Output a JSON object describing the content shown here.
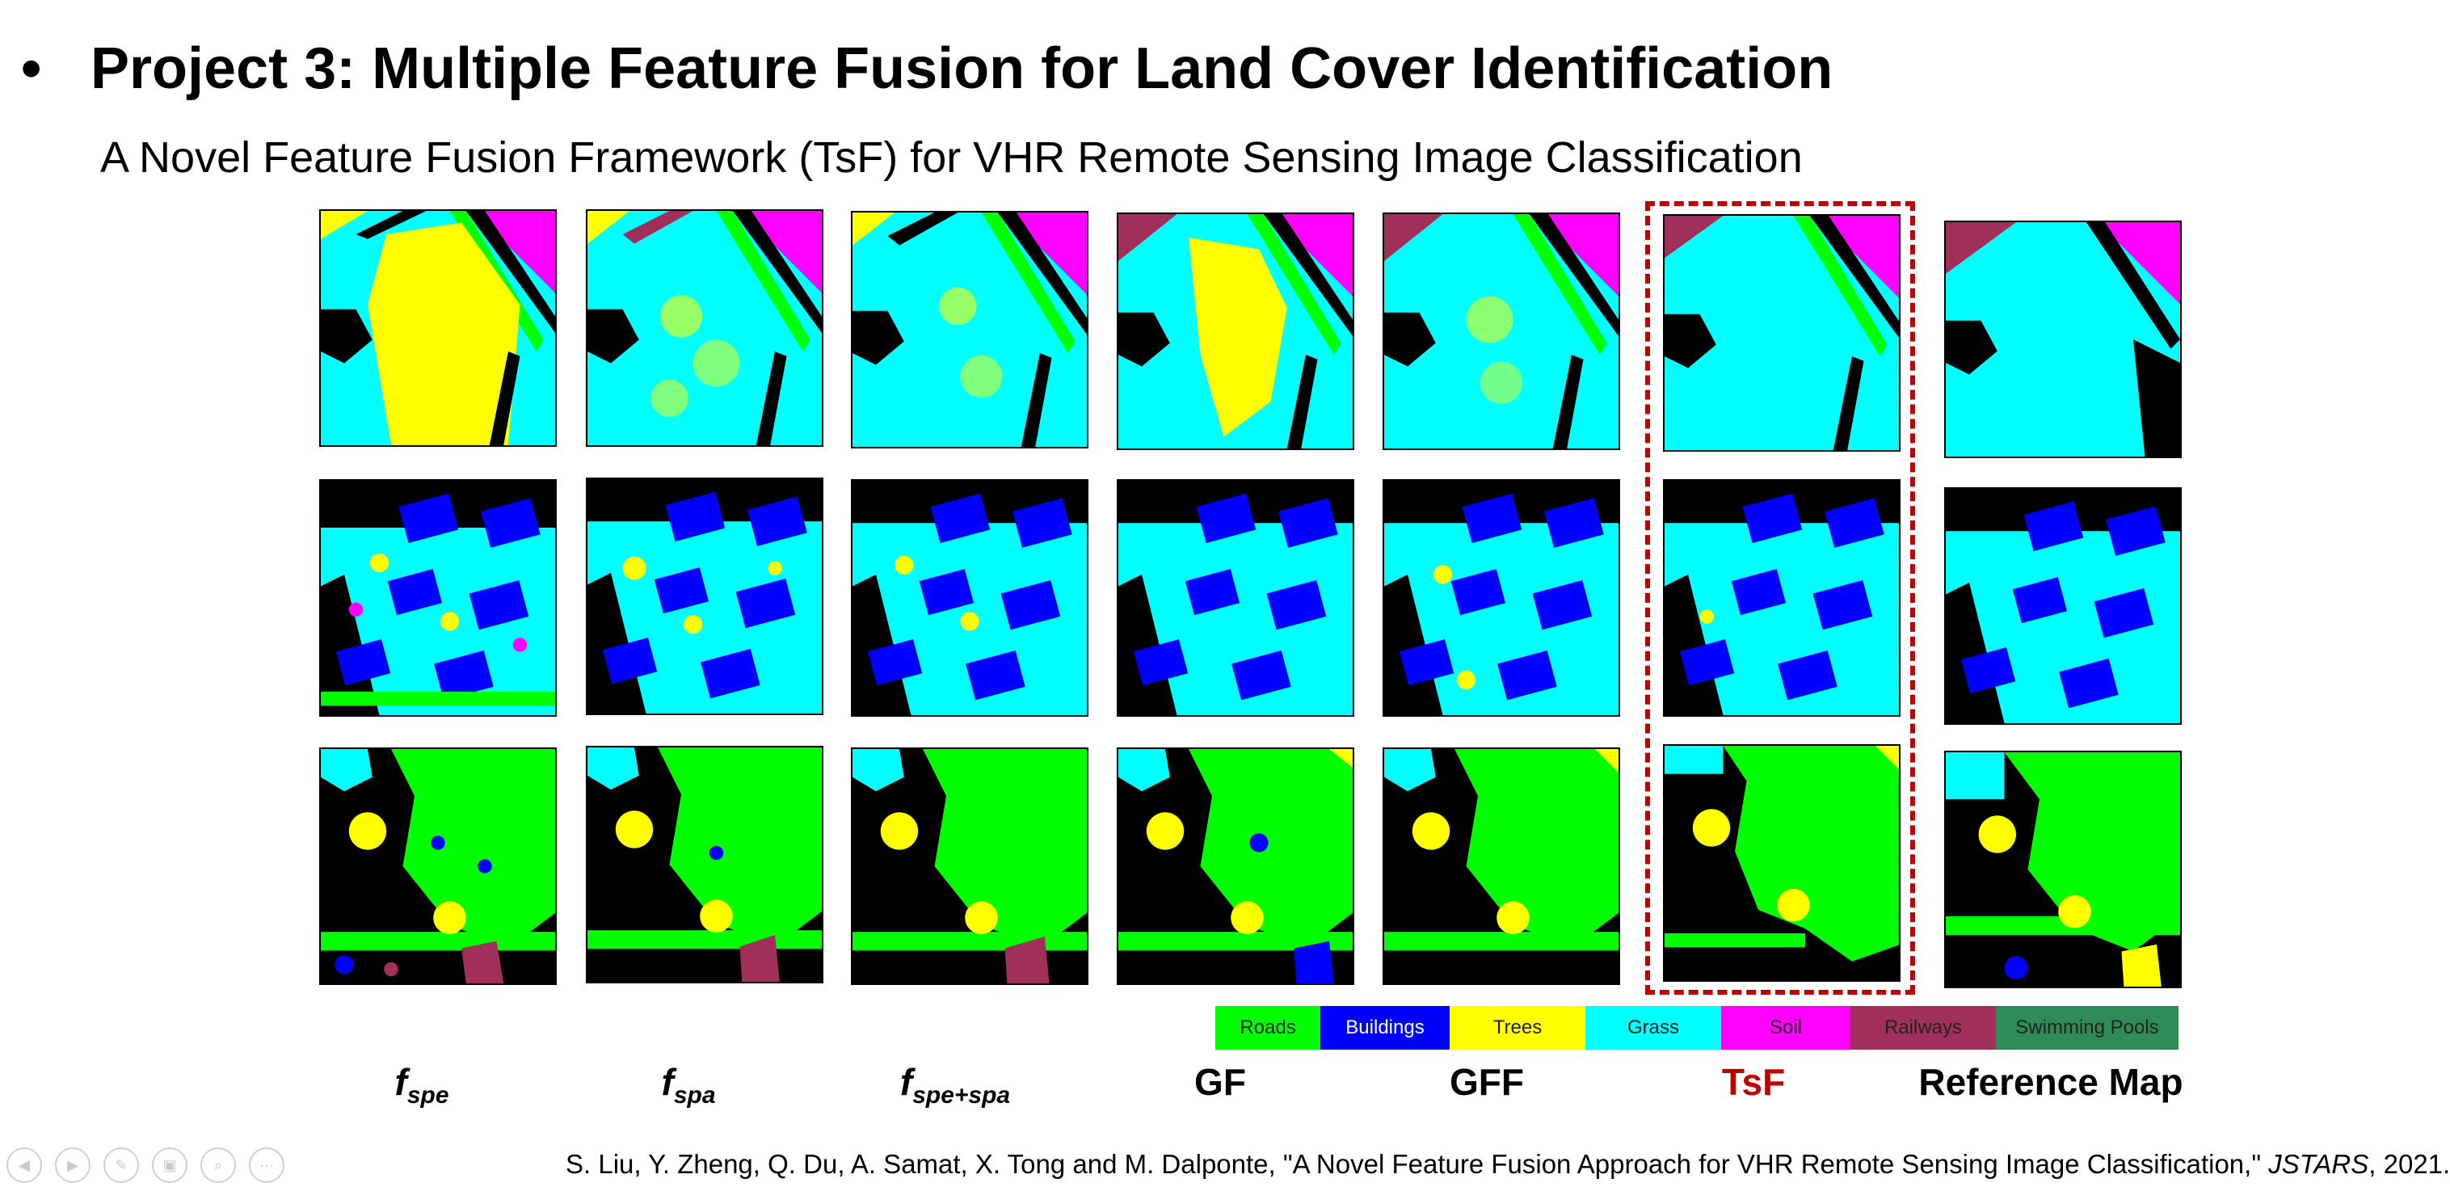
{
  "slide": {
    "bullet": "•",
    "title": "Project 3: Multiple Feature Fusion for Land Cover Identification",
    "subtitle": "A Novel Feature Fusion Framework (TsF) for VHR Remote Sensing Image Classification"
  },
  "legend": [
    {
      "label": "Roads",
      "color": "#00ff00"
    },
    {
      "label": "Buildings",
      "color": "#0000ff"
    },
    {
      "label": "Trees",
      "color": "#ffff00"
    },
    {
      "label": "Grass",
      "color": "#00ffff"
    },
    {
      "label": "Soil",
      "color": "#ff00ff"
    },
    {
      "label": "Railways",
      "color": "#a0305a"
    },
    {
      "label": "Swimming Pools",
      "color": "#2e8b57"
    }
  ],
  "columns": {
    "c1": {
      "main": "f",
      "sub": "spe"
    },
    "c2": {
      "main": "f",
      "sub": "spa"
    },
    "c3": {
      "main": "f",
      "sub": "spe+spa"
    },
    "c4": "GF",
    "c5": "GFF",
    "c6": "TsF",
    "c7": "Reference Map"
  },
  "highlight_color": "#c00000",
  "citation": {
    "authors": "S. Liu, Y. Zheng, Q. Du, A. Samat, X. Tong and M. Dalponte, \"A Novel Feature Fusion Approach for VHR Remote Sensing Image Classification,\" ",
    "journal": "JSTARS",
    "year": ", 2021."
  },
  "nav_icons": [
    "prev-icon",
    "next-icon",
    "pen-icon",
    "slides-icon",
    "zoom-icon",
    "more-icon"
  ]
}
